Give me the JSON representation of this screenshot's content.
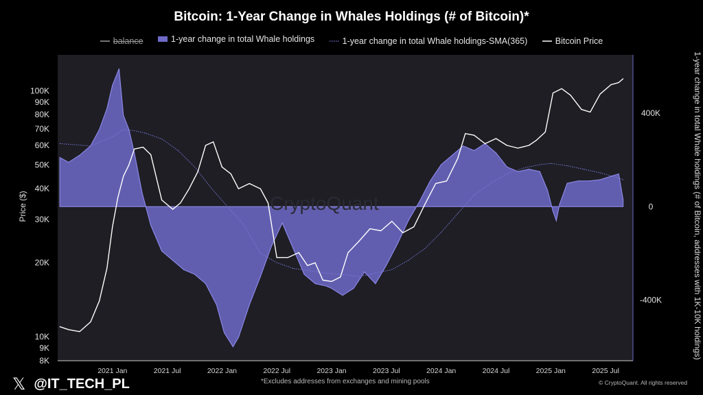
{
  "chart_data": {
    "type": "area+line",
    "title": "Bitcoin: 1-Year Change in Whales Holdings (# of Bitcoin)*",
    "legend": [
      "balance",
      "1-year change in total Whale holdings",
      "1-year change in total Whale holdings-SMA(365)",
      "Bitcoin Price"
    ],
    "ylabel_left": "Price ($)",
    "ylabel_right": "1-year change in total Whale holdings (# of Bitcoin, addresses with 1K-10K holdings)",
    "y_left_scale": "log",
    "y_left_range": [
      8000,
      140000
    ],
    "y_left_ticks": [
      {
        "v": 100000,
        "label": "100K"
      },
      {
        "v": 90000,
        "label": "90K"
      },
      {
        "v": 80000,
        "label": "80K"
      },
      {
        "v": 70000,
        "label": "70K"
      },
      {
        "v": 60000,
        "label": "60K"
      },
      {
        "v": 50000,
        "label": "50K"
      },
      {
        "v": 40000,
        "label": "40K"
      },
      {
        "v": 30000,
        "label": "30K"
      },
      {
        "v": 20000,
        "label": "20K"
      },
      {
        "v": 10000,
        "label": "10K"
      },
      {
        "v": 9000,
        "label": "9K"
      },
      {
        "v": 8000,
        "label": "8K"
      }
    ],
    "y_right_range": [
      -660000,
      650000
    ],
    "y_right_ticks": [
      {
        "v": 400000,
        "label": "400K"
      },
      {
        "v": 0,
        "label": "0"
      },
      {
        "v": -400000,
        "label": "-400K"
      }
    ],
    "x_range": [
      2020.5,
      2025.75
    ],
    "x_ticks": [
      {
        "v": 2021.0,
        "label": "2021 Jan"
      },
      {
        "v": 2021.5,
        "label": "2021 Jul"
      },
      {
        "v": 2022.0,
        "label": "2022 Jan"
      },
      {
        "v": 2022.5,
        "label": "2022 Jul"
      },
      {
        "v": 2023.0,
        "label": "2023 Jan"
      },
      {
        "v": 2023.5,
        "label": "2023 Jul"
      },
      {
        "v": 2024.0,
        "label": "2024 Jan"
      },
      {
        "v": 2024.5,
        "label": "2024 Jul"
      },
      {
        "v": 2025.0,
        "label": "2025 Jan"
      },
      {
        "v": 2025.5,
        "label": "2025 Jul"
      }
    ],
    "series": [
      {
        "name": "1-year change in total Whale holdings",
        "kind": "area",
        "color": "#6e6ac8",
        "x": [
          2020.52,
          2020.6,
          2020.7,
          2020.8,
          2020.88,
          2020.95,
          2021.0,
          2021.06,
          2021.1,
          2021.15,
          2021.2,
          2021.27,
          2021.35,
          2021.45,
          2021.55,
          2021.65,
          2021.75,
          2021.85,
          2021.95,
          2022.02,
          2022.1,
          2022.15,
          2022.25,
          2022.35,
          2022.45,
          2022.55,
          2022.65,
          2022.75,
          2022.85,
          2022.95,
          2023.0,
          2023.1,
          2023.2,
          2023.3,
          2023.4,
          2023.5,
          2023.6,
          2023.7,
          2023.8,
          2023.9,
          2024.0,
          2024.1,
          2024.2,
          2024.3,
          2024.4,
          2024.5,
          2024.6,
          2024.7,
          2024.8,
          2024.9,
          2024.97,
          2025.02,
          2025.05,
          2025.08,
          2025.15,
          2025.25,
          2025.35,
          2025.45,
          2025.55,
          2025.62,
          2025.66
        ],
        "values": [
          210000,
          190000,
          220000,
          260000,
          330000,
          420000,
          520000,
          590000,
          390000,
          330000,
          230000,
          60000,
          -80000,
          -190000,
          -230000,
          -270000,
          -290000,
          -330000,
          -420000,
          -540000,
          -600000,
          -560000,
          -420000,
          -300000,
          -170000,
          -70000,
          -180000,
          -290000,
          -330000,
          -340000,
          -350000,
          -380000,
          -350000,
          -280000,
          -330000,
          -250000,
          -160000,
          -60000,
          20000,
          110000,
          180000,
          220000,
          260000,
          240000,
          270000,
          230000,
          170000,
          150000,
          160000,
          150000,
          70000,
          -20000,
          -60000,
          10000,
          100000,
          110000,
          110000,
          115000,
          130000,
          140000,
          30000
        ]
      },
      {
        "name": "1-year change in total Whale holdings-SMA(365)",
        "kind": "dotted-line",
        "color": "#7a76d8",
        "x": [
          2020.52,
          2020.8,
          2021.0,
          2021.1,
          2021.2,
          2021.3,
          2021.45,
          2021.6,
          2021.75,
          2021.9,
          2022.05,
          2022.2,
          2022.35,
          2022.5,
          2022.65,
          2022.8,
          2022.95,
          2023.1,
          2023.25,
          2023.4,
          2023.55,
          2023.7,
          2023.85,
          2024.0,
          2024.15,
          2024.3,
          2024.45,
          2024.6,
          2024.75,
          2024.9,
          2025.0,
          2025.15,
          2025.3,
          2025.45,
          2025.6,
          2025.66
        ],
        "values": [
          270000,
          260000,
          300000,
          330000,
          325000,
          315000,
          290000,
          240000,
          170000,
          80000,
          0,
          -80000,
          -200000,
          -240000,
          -265000,
          -275000,
          -285000,
          -290000,
          -300000,
          -285000,
          -270000,
          -230000,
          -180000,
          -110000,
          -30000,
          50000,
          100000,
          140000,
          165000,
          180000,
          185000,
          175000,
          160000,
          145000,
          125000,
          115000
        ]
      },
      {
        "name": "Bitcoin Price",
        "kind": "line",
        "color": "#ffffff",
        "x": [
          2020.52,
          2020.6,
          2020.7,
          2020.8,
          2020.88,
          2020.95,
          2021.0,
          2021.05,
          2021.1,
          2021.15,
          2021.2,
          2021.28,
          2021.35,
          2021.45,
          2021.55,
          2021.62,
          2021.7,
          2021.78,
          2021.85,
          2021.92,
          2022.0,
          2022.08,
          2022.15,
          2022.25,
          2022.35,
          2022.42,
          2022.5,
          2022.6,
          2022.7,
          2022.78,
          2022.85,
          2022.92,
          2023.0,
          2023.08,
          2023.15,
          2023.25,
          2023.35,
          2023.45,
          2023.55,
          2023.65,
          2023.75,
          2023.85,
          2023.95,
          2024.05,
          2024.15,
          2024.22,
          2024.3,
          2024.4,
          2024.5,
          2024.6,
          2024.7,
          2024.8,
          2024.87,
          2024.95,
          2025.02,
          2025.1,
          2025.18,
          2025.28,
          2025.36,
          2025.45,
          2025.55,
          2025.62,
          2025.66
        ],
        "values": [
          11000,
          10700,
          10500,
          11500,
          14000,
          19000,
          28000,
          37000,
          45000,
          50000,
          58000,
          59000,
          55000,
          36000,
          33000,
          35000,
          40000,
          47000,
          60000,
          62000,
          49000,
          46000,
          40000,
          42000,
          40000,
          35000,
          21000,
          21000,
          22000,
          19500,
          20000,
          17000,
          16800,
          17500,
          22000,
          24500,
          27500,
          27000,
          29500,
          26500,
          28000,
          34500,
          42000,
          43000,
          53000,
          67000,
          66000,
          61000,
          64000,
          60000,
          58500,
          60000,
          63000,
          68000,
          98000,
          102000,
          96000,
          84000,
          82000,
          97000,
          106000,
          108000,
          112000
        ]
      }
    ],
    "watermark": "CryptoQuant"
  },
  "footnote": "*Excludes addresses from exchanges and mining pools",
  "credit": "© CryptoQuant. All rights reserved",
  "handle": "@IT_TECH_PL",
  "colors": {
    "background": "#000000",
    "plot_bg": "#1e1e24",
    "area": "#6e6ac8",
    "line": "#ffffff"
  }
}
